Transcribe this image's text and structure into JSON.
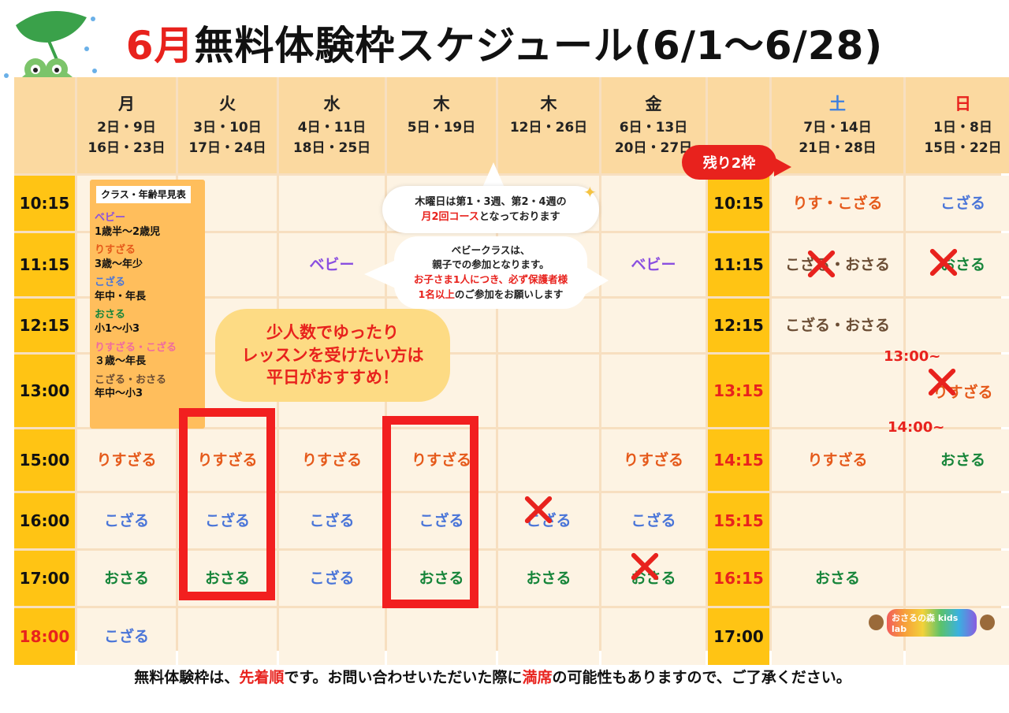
{
  "title": {
    "month": "6月",
    "rest": "無料体験枠スケジュール(6/1〜6/28)"
  },
  "header": {
    "mon": {
      "day": "月",
      "d1": "2日・9日",
      "d2": "16日・23日"
    },
    "tue": {
      "day": "火",
      "d1": "3日・10日",
      "d2": "17日・24日"
    },
    "wed": {
      "day": "水",
      "d1": "4日・11日",
      "d2": "18日・25日"
    },
    "thu1": {
      "day": "木",
      "d1": "5日・19日"
    },
    "thu2": {
      "day": "木",
      "d1": "12日・26日"
    },
    "fri": {
      "day": "金",
      "d1": "6日・13日",
      "d2": "20日・27日"
    },
    "sat": {
      "day": "土",
      "d1": "7日・14日",
      "d2": "21日・28日"
    },
    "sun": {
      "day": "日",
      "d1": "1日・8日",
      "d2": "15日・22日"
    }
  },
  "times_weekday": [
    "10:15",
    "11:15",
    "12:15",
    "13:00",
    "15:00",
    "16:00",
    "17:00",
    "18:00"
  ],
  "times_weekend": [
    "10:15",
    "11:15",
    "12:15",
    "13:15",
    "14:15",
    "15:15",
    "16:15",
    "17:00"
  ],
  "classes": {
    "risu": "りすざる",
    "koza": "こざる",
    "osa": "おさる",
    "baby": "ベビー",
    "sat_1015": "りす・こざる",
    "sat_1115a": "こざる",
    "sat_1115sep": "・",
    "sat_1115b": "おさる",
    "sat_1215": "こざる・おさる"
  },
  "sunday_times": {
    "t1": "13:00~",
    "t2": "14:00~"
  },
  "legend": {
    "title": "クラス・年齢早見表",
    "items": [
      {
        "name": "ベビー",
        "desc": "1歳半〜2歳児",
        "color": "#8a4fe0"
      },
      {
        "name": "りすざる",
        "desc": "3歳〜年少",
        "color": "#e5591a"
      },
      {
        "name": "こざる",
        "desc": "年中・年長",
        "color": "#4a75d8"
      },
      {
        "name": "おさる",
        "desc": "小1〜小3",
        "color": "#17853a"
      },
      {
        "name": "りすざる・こざる",
        "desc": "３歳〜年長",
        "color": "#f06aa0"
      },
      {
        "name": "こざる・おさる",
        "desc": "年中〜小3",
        "color": "#6b4d34"
      }
    ]
  },
  "callout": {
    "l1": "少人数でゆったり",
    "l2": "レッスンを受けたい方は",
    "l3": "平日がおすすめ！"
  },
  "thursday_note": {
    "l1": "木曜日は第1・3週、第2・4週の",
    "hl": "月2回コース",
    "l2": "となっております"
  },
  "baby_note": {
    "l1": "ベビークラスは、",
    "l2": "親子での参加となります。",
    "l3": "お子さま1人につき、必ず保護者様",
    "hl": "1名以上",
    "l4": "のご参加をお願いします"
  },
  "badge": "残り2枠",
  "footer": {
    "a": "無料体験枠は、",
    "b": "先着順",
    "c": "です。お問い合わせいただいた際に",
    "d": "満席",
    "e": "の可能性もありますので、ご了承ください。"
  },
  "logo": "おさるの森 kids lab",
  "colors": {
    "accent_red": "#e8221d",
    "time_yellow": "#ffc414",
    "header": "#fbd9a0",
    "cell": "#fdf3e3"
  }
}
